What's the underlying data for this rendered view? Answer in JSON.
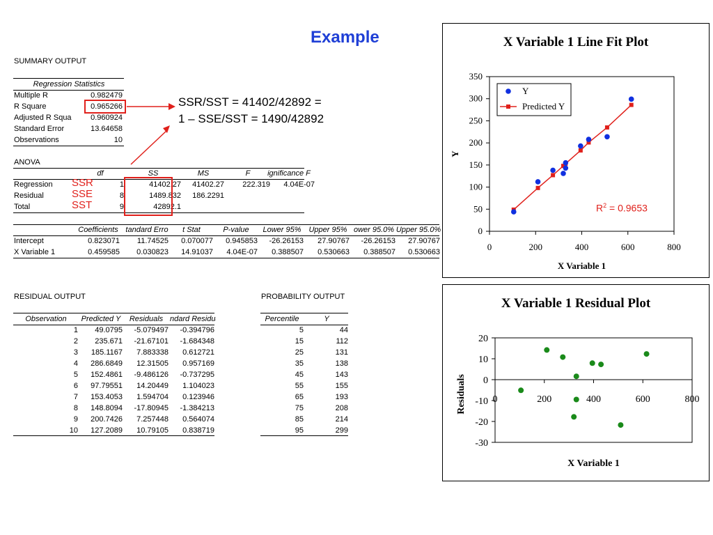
{
  "slide": {
    "title": "Example",
    "annotation_line1": "SSR/SST = 41402/42892 =",
    "annotation_line2": "1 – SSE/SST = 1490/42892",
    "label_ssr": "SSR",
    "label_sse": "SSE",
    "label_sst": "SST",
    "r2_prefix": "R",
    "r2_sup": "2",
    "r2_suffix": " = 0.9653",
    "colors": {
      "title": "#1f3fd6",
      "red": "#e0201b",
      "blue": "#1030e0",
      "green": "#1a8a1a"
    }
  },
  "summary": {
    "heading": "SUMMARY OUTPUT",
    "reg_stats_header": "Regression Statistics",
    "rows": [
      {
        "label": "Multiple R",
        "value": "0.982479"
      },
      {
        "label": "R Square",
        "value": "0.965266"
      },
      {
        "label": "Adjusted R Squa",
        "value": "0.960924"
      },
      {
        "label": "Standard Error",
        "value": "13.64658"
      },
      {
        "label": "Observations",
        "value": "10"
      }
    ]
  },
  "anova": {
    "heading": "ANOVA",
    "headers": [
      "df",
      "SS",
      "MS",
      "F",
      "ignificance F"
    ],
    "rows": [
      {
        "label": "Regression",
        "df": "1",
        "ss": "41402.27",
        "ms": "41402.27",
        "f": "222.319",
        "sig": "4.04E-07"
      },
      {
        "label": "Residual",
        "df": "8",
        "ss": "1489.832",
        "ms": "186.2291",
        "f": "",
        "sig": ""
      },
      {
        "label": "Total",
        "df": "9",
        "ss": "42892.1",
        "ms": "",
        "f": "",
        "sig": ""
      }
    ]
  },
  "coefficients": {
    "headers": [
      "Coefficients",
      "tandard Erro",
      "t Stat",
      "P-value",
      "Lower 95%",
      "Upper 95%",
      "ower 95.0%",
      "Upper 95.0%"
    ],
    "rows": [
      {
        "label": "Intercept",
        "values": [
          "0.823071",
          "11.74525",
          "0.070077",
          "0.945853",
          "-26.26153",
          "27.90767",
          "-26.26153",
          "27.90767"
        ]
      },
      {
        "label": "X Variable 1",
        "values": [
          "0.459585",
          "0.030823",
          "14.91037",
          "4.04E-07",
          "0.388507",
          "0.530663",
          "0.388507",
          "0.530663"
        ]
      }
    ]
  },
  "residual_output": {
    "heading": "RESIDUAL OUTPUT",
    "headers": [
      "Observation",
      "Predicted Y",
      "Residuals",
      "ndard Residuals"
    ],
    "rows": [
      [
        "1",
        "49.0795",
        "-5.079497",
        "-0.394796"
      ],
      [
        "2",
        "235.671",
        "-21.67101",
        "-1.684348"
      ],
      [
        "3",
        "185.1167",
        "7.883338",
        "0.612721"
      ],
      [
        "4",
        "286.6849",
        "12.31505",
        "0.957169"
      ],
      [
        "5",
        "152.4861",
        "-9.486126",
        "-0.737295"
      ],
      [
        "6",
        "97.79551",
        "14.20449",
        "1.104023"
      ],
      [
        "7",
        "153.4053",
        "1.594704",
        "0.123946"
      ],
      [
        "8",
        "148.8094",
        "-17.80945",
        "-1.384213"
      ],
      [
        "9",
        "200.7426",
        "7.257448",
        "0.564074"
      ],
      [
        "10",
        "127.2089",
        "10.79105",
        "0.838719"
      ]
    ]
  },
  "probability_output": {
    "heading": "PROBABILITY OUTPUT",
    "headers": [
      "Percentile",
      "Y"
    ],
    "rows": [
      [
        "5",
        "44"
      ],
      [
        "15",
        "112"
      ],
      [
        "25",
        "131"
      ],
      [
        "35",
        "138"
      ],
      [
        "45",
        "143"
      ],
      [
        "55",
        "155"
      ],
      [
        "65",
        "193"
      ],
      [
        "75",
        "208"
      ],
      [
        "85",
        "214"
      ],
      [
        "95",
        "299"
      ]
    ]
  },
  "chart_data": [
    {
      "type": "scatter",
      "title": "X Variable 1 Line Fit  Plot",
      "xlabel": "X Variable 1",
      "ylabel": "Y",
      "xlim": [
        0,
        800
      ],
      "ylim": [
        0,
        350
      ],
      "xticks": [
        "0",
        "200",
        "400",
        "600",
        "800"
      ],
      "yticks": [
        "0",
        "50",
        "100",
        "150",
        "200",
        "250",
        "300",
        "350"
      ],
      "legend": [
        "Y",
        "Predicted Y"
      ],
      "legend_position": "top-left",
      "series": [
        {
          "name": "Y",
          "marker": "circle",
          "x": [
            105,
            210,
            275,
            320,
            330,
            330,
            395,
            430,
            510,
            615
          ],
          "y": [
            44,
            112,
            138,
            131,
            143,
            155,
            193,
            208,
            214,
            299
          ]
        },
        {
          "name": "Predicted Y",
          "marker": "square",
          "x": [
            105,
            210,
            275,
            320,
            330,
            395,
            430,
            510,
            615
          ],
          "y": [
            49,
            98,
            127,
            148,
            153,
            183,
            201,
            235,
            286
          ]
        }
      ]
    },
    {
      "type": "scatter",
      "title": "X Variable 1  Residual Plot",
      "xlabel": "X Variable 1",
      "ylabel": "Residuals",
      "xlim": [
        0,
        800
      ],
      "ylim": [
        -30,
        20
      ],
      "xticks": [
        "0",
        "200",
        "400",
        "600",
        "800"
      ],
      "yticks": [
        "-30",
        "-20",
        "-10",
        "0",
        "10",
        "20"
      ],
      "series": [
        {
          "name": "Residuals",
          "marker": "circle",
          "x": [
            105,
            210,
            275,
            320,
            330,
            330,
            395,
            430,
            510,
            615
          ],
          "y": [
            -5.1,
            14.2,
            10.8,
            -17.8,
            1.6,
            -9.5,
            7.9,
            7.3,
            -21.7,
            12.3
          ]
        }
      ]
    }
  ]
}
